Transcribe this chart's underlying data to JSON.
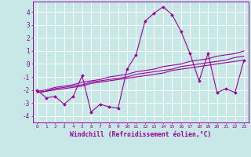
{
  "x": [
    0,
    1,
    2,
    3,
    4,
    5,
    6,
    7,
    8,
    9,
    10,
    11,
    12,
    13,
    14,
    15,
    16,
    17,
    18,
    19,
    20,
    21,
    22,
    23
  ],
  "y_main": [
    -2.0,
    -2.6,
    -2.5,
    -3.1,
    -2.5,
    -0.9,
    -3.7,
    -3.1,
    -3.3,
    -3.4,
    -0.4,
    0.7,
    3.3,
    3.9,
    4.4,
    3.8,
    2.5,
    0.8,
    -1.3,
    0.8,
    -2.2,
    -1.9,
    -2.2,
    0.3
  ],
  "y_reg1": [
    -2.2,
    -2.1,
    -2.0,
    -1.9,
    -1.8,
    -1.7,
    -1.5,
    -1.4,
    -1.3,
    -1.2,
    -1.1,
    -1.0,
    -0.9,
    -0.8,
    -0.7,
    -0.5,
    -0.4,
    -0.3,
    -0.2,
    -0.1,
    0.0,
    0.1,
    0.2,
    0.3
  ],
  "y_reg2": [
    -2.2,
    -2.1,
    -1.9,
    -1.8,
    -1.7,
    -1.6,
    -1.4,
    -1.3,
    -1.2,
    -1.1,
    -1.0,
    -0.8,
    -0.7,
    -0.6,
    -0.5,
    -0.4,
    -0.2,
    -0.1,
    0.0,
    0.1,
    0.2,
    0.3,
    0.5,
    0.6
  ],
  "y_reg3": [
    -2.1,
    -2.0,
    -1.8,
    -1.7,
    -1.6,
    -1.4,
    -1.3,
    -1.2,
    -1.0,
    -0.9,
    -0.8,
    -0.6,
    -0.5,
    -0.4,
    -0.2,
    -0.1,
    0.0,
    0.2,
    0.3,
    0.4,
    0.6,
    0.7,
    0.8,
    1.0
  ],
  "line_color": "#990099",
  "bg_color": "#c8e8e8",
  "grid_color": "#ffffff",
  "ylabel_vals": [
    -4,
    -3,
    -2,
    -1,
    0,
    1,
    2,
    3,
    4
  ],
  "xlabel": "Windchill (Refroidissement éolien,°C)",
  "ylim": [
    -4.5,
    4.8
  ],
  "xlim": [
    -0.5,
    23.5
  ]
}
